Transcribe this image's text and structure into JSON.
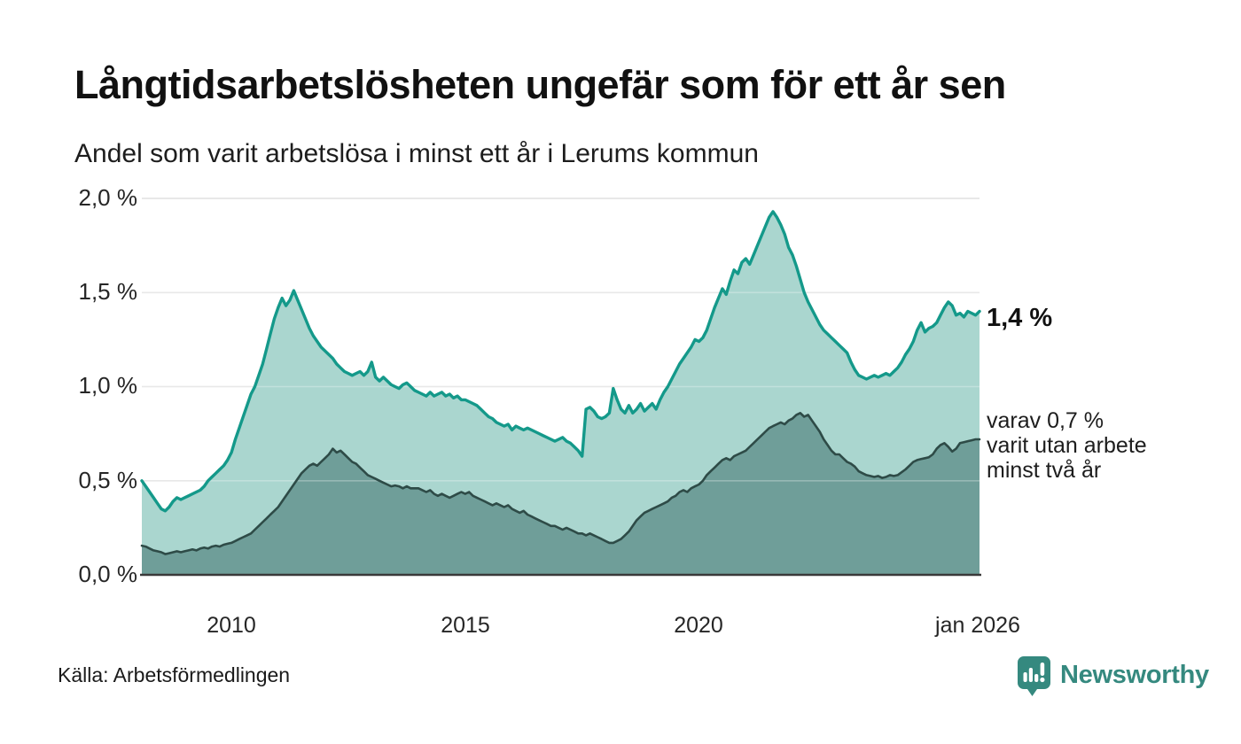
{
  "title": "Långtidsarbetslösheten ungefär som för ett år sen",
  "subtitle": "Andel som varit arbetslösa i minst ett år i Lerums kommun",
  "source": "Källa: Arbetsförmedlingen",
  "branding": {
    "name": "Newsworthy",
    "icon": "bar-chart-speech-bubble",
    "color": "#35897f"
  },
  "annotations": {
    "series1_end_value": "1,4 %",
    "series2_end_line1": "varav 0,7 %",
    "series2_end_line2": "varit utan arbete",
    "series2_end_line3": "minst två år"
  },
  "colors": {
    "series1_line": "#14998a",
    "series1_fill": "#aad6cf",
    "series2_line": "#2e4b47",
    "series2_fill": "#6f9e99",
    "gridline": "#e0e0e0",
    "axis": "#3a3a3a",
    "background": "#ffffff"
  },
  "chart_data": {
    "type": "area",
    "title": "Långtidsarbetslösheten ungefär som för ett år sen",
    "subtitle": "Andel som varit arbetslösa i minst ett år i Lerums kommun",
    "unit": "percent of population",
    "frequency": "monthly",
    "x_start": "2008-02",
    "x_end": "2026-01",
    "ylim": [
      0,
      2.0
    ],
    "grid": true,
    "y_tick_labels": [
      "2,0 %",
      "1,5 %",
      "1,0 %",
      "0,5 %",
      "0,0 %"
    ],
    "x_tick_labels": [
      "2010",
      "2015",
      "2020",
      "jan 2026"
    ],
    "x_tick_month_index": [
      23,
      83,
      143,
      215
    ],
    "series": [
      {
        "name": "Andel arbetslösa minst ett år",
        "end_label": "1,4 %",
        "color": "#14998a",
        "fill": "#aad6cf",
        "values": [
          0.5,
          0.47,
          0.44,
          0.41,
          0.38,
          0.35,
          0.34,
          0.36,
          0.39,
          0.41,
          0.4,
          0.41,
          0.42,
          0.43,
          0.44,
          0.45,
          0.47,
          0.5,
          0.52,
          0.54,
          0.56,
          0.58,
          0.61,
          0.65,
          0.72,
          0.78,
          0.84,
          0.9,
          0.96,
          1.0,
          1.06,
          1.12,
          1.2,
          1.28,
          1.36,
          1.42,
          1.47,
          1.43,
          1.46,
          1.51,
          1.46,
          1.41,
          1.36,
          1.31,
          1.27,
          1.24,
          1.21,
          1.19,
          1.17,
          1.15,
          1.12,
          1.1,
          1.08,
          1.07,
          1.06,
          1.07,
          1.08,
          1.06,
          1.08,
          1.13,
          1.05,
          1.03,
          1.05,
          1.03,
          1.01,
          1.0,
          0.99,
          1.01,
          1.02,
          1.0,
          0.98,
          0.97,
          0.96,
          0.95,
          0.97,
          0.95,
          0.96,
          0.97,
          0.95,
          0.96,
          0.94,
          0.95,
          0.93,
          0.93,
          0.92,
          0.91,
          0.9,
          0.88,
          0.86,
          0.84,
          0.83,
          0.81,
          0.8,
          0.79,
          0.8,
          0.77,
          0.79,
          0.78,
          0.77,
          0.78,
          0.77,
          0.76,
          0.75,
          0.74,
          0.73,
          0.72,
          0.71,
          0.72,
          0.73,
          0.71,
          0.7,
          0.68,
          0.66,
          0.63,
          0.88,
          0.89,
          0.87,
          0.84,
          0.83,
          0.84,
          0.86,
          0.99,
          0.93,
          0.88,
          0.86,
          0.9,
          0.86,
          0.88,
          0.91,
          0.87,
          0.89,
          0.91,
          0.88,
          0.93,
          0.97,
          1.0,
          1.04,
          1.08,
          1.12,
          1.15,
          1.18,
          1.21,
          1.25,
          1.24,
          1.26,
          1.3,
          1.36,
          1.42,
          1.47,
          1.52,
          1.49,
          1.56,
          1.62,
          1.6,
          1.66,
          1.68,
          1.65,
          1.7,
          1.75,
          1.8,
          1.85,
          1.9,
          1.93,
          1.9,
          1.86,
          1.81,
          1.74,
          1.7,
          1.64,
          1.57,
          1.5,
          1.45,
          1.41,
          1.37,
          1.33,
          1.3,
          1.28,
          1.26,
          1.24,
          1.22,
          1.2,
          1.18,
          1.13,
          1.09,
          1.06,
          1.05,
          1.04,
          1.05,
          1.06,
          1.05,
          1.06,
          1.07,
          1.06,
          1.08,
          1.1,
          1.13,
          1.17,
          1.2,
          1.24,
          1.3,
          1.34,
          1.29,
          1.31,
          1.32,
          1.34,
          1.38,
          1.42,
          1.45,
          1.43,
          1.38,
          1.39,
          1.37,
          1.4,
          1.39,
          1.38,
          1.4
        ]
      },
      {
        "name": "varav varit utan arbete minst två år",
        "end_label": "varav 0,7 % varit utan arbete minst två år",
        "color": "#2e4b47",
        "fill": "#6f9e99",
        "values": [
          0.155,
          0.15,
          0.14,
          0.13,
          0.125,
          0.12,
          0.11,
          0.115,
          0.12,
          0.125,
          0.12,
          0.125,
          0.13,
          0.135,
          0.13,
          0.14,
          0.145,
          0.14,
          0.15,
          0.155,
          0.15,
          0.16,
          0.165,
          0.17,
          0.18,
          0.19,
          0.2,
          0.21,
          0.22,
          0.24,
          0.26,
          0.28,
          0.3,
          0.32,
          0.34,
          0.36,
          0.39,
          0.42,
          0.45,
          0.48,
          0.51,
          0.54,
          0.56,
          0.58,
          0.59,
          0.58,
          0.6,
          0.62,
          0.64,
          0.67,
          0.65,
          0.66,
          0.64,
          0.62,
          0.6,
          0.59,
          0.57,
          0.55,
          0.53,
          0.52,
          0.51,
          0.5,
          0.49,
          0.48,
          0.47,
          0.475,
          0.47,
          0.46,
          0.47,
          0.46,
          0.46,
          0.46,
          0.45,
          0.44,
          0.45,
          0.43,
          0.42,
          0.43,
          0.42,
          0.41,
          0.42,
          0.43,
          0.44,
          0.43,
          0.44,
          0.42,
          0.41,
          0.4,
          0.39,
          0.38,
          0.37,
          0.38,
          0.37,
          0.36,
          0.37,
          0.35,
          0.34,
          0.33,
          0.34,
          0.32,
          0.31,
          0.3,
          0.29,
          0.28,
          0.27,
          0.26,
          0.26,
          0.25,
          0.24,
          0.25,
          0.24,
          0.23,
          0.22,
          0.22,
          0.21,
          0.22,
          0.21,
          0.2,
          0.19,
          0.18,
          0.17,
          0.17,
          0.18,
          0.19,
          0.21,
          0.23,
          0.26,
          0.29,
          0.31,
          0.33,
          0.34,
          0.35,
          0.36,
          0.37,
          0.38,
          0.39,
          0.41,
          0.42,
          0.44,
          0.45,
          0.44,
          0.46,
          0.47,
          0.48,
          0.5,
          0.53,
          0.55,
          0.57,
          0.59,
          0.61,
          0.62,
          0.61,
          0.63,
          0.64,
          0.65,
          0.66,
          0.68,
          0.7,
          0.72,
          0.74,
          0.76,
          0.78,
          0.79,
          0.8,
          0.81,
          0.8,
          0.82,
          0.83,
          0.85,
          0.86,
          0.84,
          0.85,
          0.82,
          0.79,
          0.76,
          0.72,
          0.69,
          0.66,
          0.64,
          0.64,
          0.62,
          0.6,
          0.59,
          0.575,
          0.55,
          0.54,
          0.53,
          0.525,
          0.52,
          0.525,
          0.515,
          0.52,
          0.53,
          0.525,
          0.53,
          0.545,
          0.56,
          0.58,
          0.6,
          0.61,
          0.615,
          0.62,
          0.625,
          0.64,
          0.67,
          0.69,
          0.7,
          0.68,
          0.655,
          0.67,
          0.7,
          0.705,
          0.71,
          0.715,
          0.72,
          0.72
        ]
      }
    ],
    "legend_position": "right-edge-labels"
  }
}
